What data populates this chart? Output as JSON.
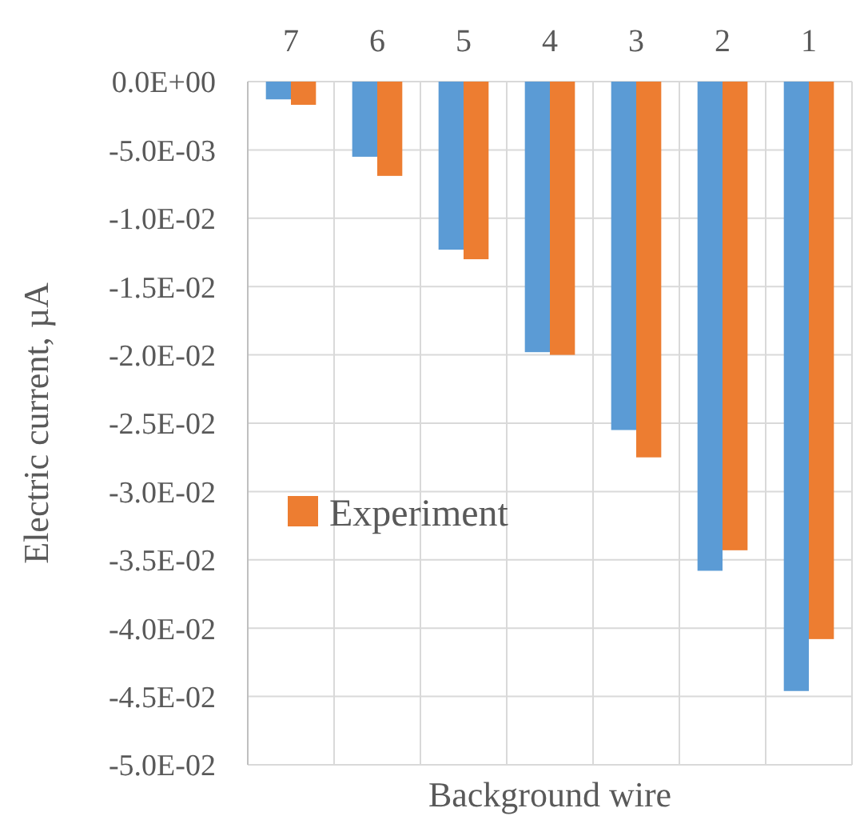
{
  "chart_data": {
    "type": "bar",
    "xlabel": "Background wire",
    "ylabel": "Electric current, µA",
    "categories": [
      "7",
      "6",
      "5",
      "4",
      "3",
      "2",
      "1"
    ],
    "series": [
      {
        "color": "#5b9bd5",
        "values": [
          -0.0013,
          -0.0055,
          -0.0123,
          -0.0198,
          -0.0255,
          -0.0358,
          -0.0446
        ]
      },
      {
        "name": "Experiment",
        "color": "#ed7d31",
        "values": [
          -0.0017,
          -0.0069,
          -0.013,
          -0.02,
          -0.0275,
          -0.0343,
          -0.0408
        ]
      }
    ],
    "ylim": [
      -0.05,
      0
    ],
    "yticks": [
      {
        "value": 0,
        "label": "0.0E+00"
      },
      {
        "value": -0.005,
        "label": "-5.0E-03"
      },
      {
        "value": -0.01,
        "label": "-1.0E-02"
      },
      {
        "value": -0.015,
        "label": "-1.5E-02"
      },
      {
        "value": -0.02,
        "label": "-2.0E-02"
      },
      {
        "value": -0.025,
        "label": "-2.5E-02"
      },
      {
        "value": -0.03,
        "label": "-3.0E-02"
      },
      {
        "value": -0.035,
        "label": "-3.5E-02"
      },
      {
        "value": -0.04,
        "label": "-4.0E-02"
      },
      {
        "value": -0.045,
        "label": "-4.5E-02"
      },
      {
        "value": -0.05,
        "label": "-5.0E-02"
      }
    ],
    "grid": true,
    "legend": "left"
  }
}
